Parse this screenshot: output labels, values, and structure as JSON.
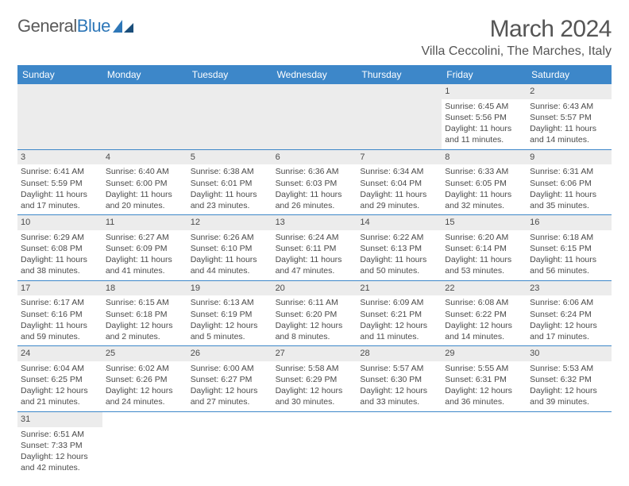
{
  "brand": {
    "part1": "General",
    "part2": "Blue"
  },
  "title": "March 2024",
  "location": "Villa Ceccolini, The Marches, Italy",
  "colors": {
    "header_bg": "#3d87c9",
    "header_text": "#ffffff",
    "gray_bg": "#ececec",
    "text": "#4a4a4a",
    "brand_blue": "#2e77b8"
  },
  "weekdays": [
    "Sunday",
    "Monday",
    "Tuesday",
    "Wednesday",
    "Thursday",
    "Friday",
    "Saturday"
  ],
  "weeks": [
    [
      null,
      null,
      null,
      null,
      null,
      {
        "n": "1",
        "sunrise": "Sunrise: 6:45 AM",
        "sunset": "Sunset: 5:56 PM",
        "day1": "Daylight: 11 hours",
        "day2": "and 11 minutes."
      },
      {
        "n": "2",
        "sunrise": "Sunrise: 6:43 AM",
        "sunset": "Sunset: 5:57 PM",
        "day1": "Daylight: 11 hours",
        "day2": "and 14 minutes."
      }
    ],
    [
      {
        "n": "3",
        "sunrise": "Sunrise: 6:41 AM",
        "sunset": "Sunset: 5:59 PM",
        "day1": "Daylight: 11 hours",
        "day2": "and 17 minutes."
      },
      {
        "n": "4",
        "sunrise": "Sunrise: 6:40 AM",
        "sunset": "Sunset: 6:00 PM",
        "day1": "Daylight: 11 hours",
        "day2": "and 20 minutes."
      },
      {
        "n": "5",
        "sunrise": "Sunrise: 6:38 AM",
        "sunset": "Sunset: 6:01 PM",
        "day1": "Daylight: 11 hours",
        "day2": "and 23 minutes."
      },
      {
        "n": "6",
        "sunrise": "Sunrise: 6:36 AM",
        "sunset": "Sunset: 6:03 PM",
        "day1": "Daylight: 11 hours",
        "day2": "and 26 minutes."
      },
      {
        "n": "7",
        "sunrise": "Sunrise: 6:34 AM",
        "sunset": "Sunset: 6:04 PM",
        "day1": "Daylight: 11 hours",
        "day2": "and 29 minutes."
      },
      {
        "n": "8",
        "sunrise": "Sunrise: 6:33 AM",
        "sunset": "Sunset: 6:05 PM",
        "day1": "Daylight: 11 hours",
        "day2": "and 32 minutes."
      },
      {
        "n": "9",
        "sunrise": "Sunrise: 6:31 AM",
        "sunset": "Sunset: 6:06 PM",
        "day1": "Daylight: 11 hours",
        "day2": "and 35 minutes."
      }
    ],
    [
      {
        "n": "10",
        "sunrise": "Sunrise: 6:29 AM",
        "sunset": "Sunset: 6:08 PM",
        "day1": "Daylight: 11 hours",
        "day2": "and 38 minutes."
      },
      {
        "n": "11",
        "sunrise": "Sunrise: 6:27 AM",
        "sunset": "Sunset: 6:09 PM",
        "day1": "Daylight: 11 hours",
        "day2": "and 41 minutes."
      },
      {
        "n": "12",
        "sunrise": "Sunrise: 6:26 AM",
        "sunset": "Sunset: 6:10 PM",
        "day1": "Daylight: 11 hours",
        "day2": "and 44 minutes."
      },
      {
        "n": "13",
        "sunrise": "Sunrise: 6:24 AM",
        "sunset": "Sunset: 6:11 PM",
        "day1": "Daylight: 11 hours",
        "day2": "and 47 minutes."
      },
      {
        "n": "14",
        "sunrise": "Sunrise: 6:22 AM",
        "sunset": "Sunset: 6:13 PM",
        "day1": "Daylight: 11 hours",
        "day2": "and 50 minutes."
      },
      {
        "n": "15",
        "sunrise": "Sunrise: 6:20 AM",
        "sunset": "Sunset: 6:14 PM",
        "day1": "Daylight: 11 hours",
        "day2": "and 53 minutes."
      },
      {
        "n": "16",
        "sunrise": "Sunrise: 6:18 AM",
        "sunset": "Sunset: 6:15 PM",
        "day1": "Daylight: 11 hours",
        "day2": "and 56 minutes."
      }
    ],
    [
      {
        "n": "17",
        "sunrise": "Sunrise: 6:17 AM",
        "sunset": "Sunset: 6:16 PM",
        "day1": "Daylight: 11 hours",
        "day2": "and 59 minutes."
      },
      {
        "n": "18",
        "sunrise": "Sunrise: 6:15 AM",
        "sunset": "Sunset: 6:18 PM",
        "day1": "Daylight: 12 hours",
        "day2": "and 2 minutes."
      },
      {
        "n": "19",
        "sunrise": "Sunrise: 6:13 AM",
        "sunset": "Sunset: 6:19 PM",
        "day1": "Daylight: 12 hours",
        "day2": "and 5 minutes."
      },
      {
        "n": "20",
        "sunrise": "Sunrise: 6:11 AM",
        "sunset": "Sunset: 6:20 PM",
        "day1": "Daylight: 12 hours",
        "day2": "and 8 minutes."
      },
      {
        "n": "21",
        "sunrise": "Sunrise: 6:09 AM",
        "sunset": "Sunset: 6:21 PM",
        "day1": "Daylight: 12 hours",
        "day2": "and 11 minutes."
      },
      {
        "n": "22",
        "sunrise": "Sunrise: 6:08 AM",
        "sunset": "Sunset: 6:22 PM",
        "day1": "Daylight: 12 hours",
        "day2": "and 14 minutes."
      },
      {
        "n": "23",
        "sunrise": "Sunrise: 6:06 AM",
        "sunset": "Sunset: 6:24 PM",
        "day1": "Daylight: 12 hours",
        "day2": "and 17 minutes."
      }
    ],
    [
      {
        "n": "24",
        "sunrise": "Sunrise: 6:04 AM",
        "sunset": "Sunset: 6:25 PM",
        "day1": "Daylight: 12 hours",
        "day2": "and 21 minutes."
      },
      {
        "n": "25",
        "sunrise": "Sunrise: 6:02 AM",
        "sunset": "Sunset: 6:26 PM",
        "day1": "Daylight: 12 hours",
        "day2": "and 24 minutes."
      },
      {
        "n": "26",
        "sunrise": "Sunrise: 6:00 AM",
        "sunset": "Sunset: 6:27 PM",
        "day1": "Daylight: 12 hours",
        "day2": "and 27 minutes."
      },
      {
        "n": "27",
        "sunrise": "Sunrise: 5:58 AM",
        "sunset": "Sunset: 6:29 PM",
        "day1": "Daylight: 12 hours",
        "day2": "and 30 minutes."
      },
      {
        "n": "28",
        "sunrise": "Sunrise: 5:57 AM",
        "sunset": "Sunset: 6:30 PM",
        "day1": "Daylight: 12 hours",
        "day2": "and 33 minutes."
      },
      {
        "n": "29",
        "sunrise": "Sunrise: 5:55 AM",
        "sunset": "Sunset: 6:31 PM",
        "day1": "Daylight: 12 hours",
        "day2": "and 36 minutes."
      },
      {
        "n": "30",
        "sunrise": "Sunrise: 5:53 AM",
        "sunset": "Sunset: 6:32 PM",
        "day1": "Daylight: 12 hours",
        "day2": "and 39 minutes."
      }
    ],
    [
      {
        "n": "31",
        "sunrise": "Sunrise: 6:51 AM",
        "sunset": "Sunset: 7:33 PM",
        "day1": "Daylight: 12 hours",
        "day2": "and 42 minutes."
      },
      null,
      null,
      null,
      null,
      null,
      null
    ]
  ]
}
